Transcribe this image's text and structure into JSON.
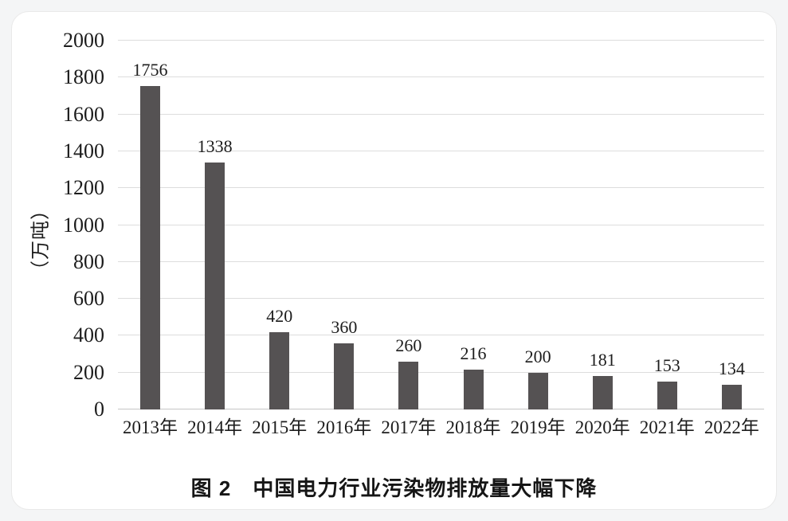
{
  "chart_data": {
    "type": "bar",
    "categories": [
      "2013年",
      "2014年",
      "2015年",
      "2016年",
      "2017年",
      "2018年",
      "2019年",
      "2020年",
      "2021年",
      "2022年"
    ],
    "values": [
      1756,
      1338,
      420,
      360,
      260,
      216,
      200,
      181,
      153,
      134
    ],
    "title": "图 2　中国电力行业污染物排放量大幅下降",
    "xlabel": "",
    "ylabel": "（万吨）",
    "ylim": [
      0,
      2000
    ],
    "ytick_step": 200,
    "grid": true,
    "legend": "none",
    "bar_color": "#555253",
    "gridline_color": "#dddddd",
    "axis_line_color": "#c6c6c6"
  }
}
